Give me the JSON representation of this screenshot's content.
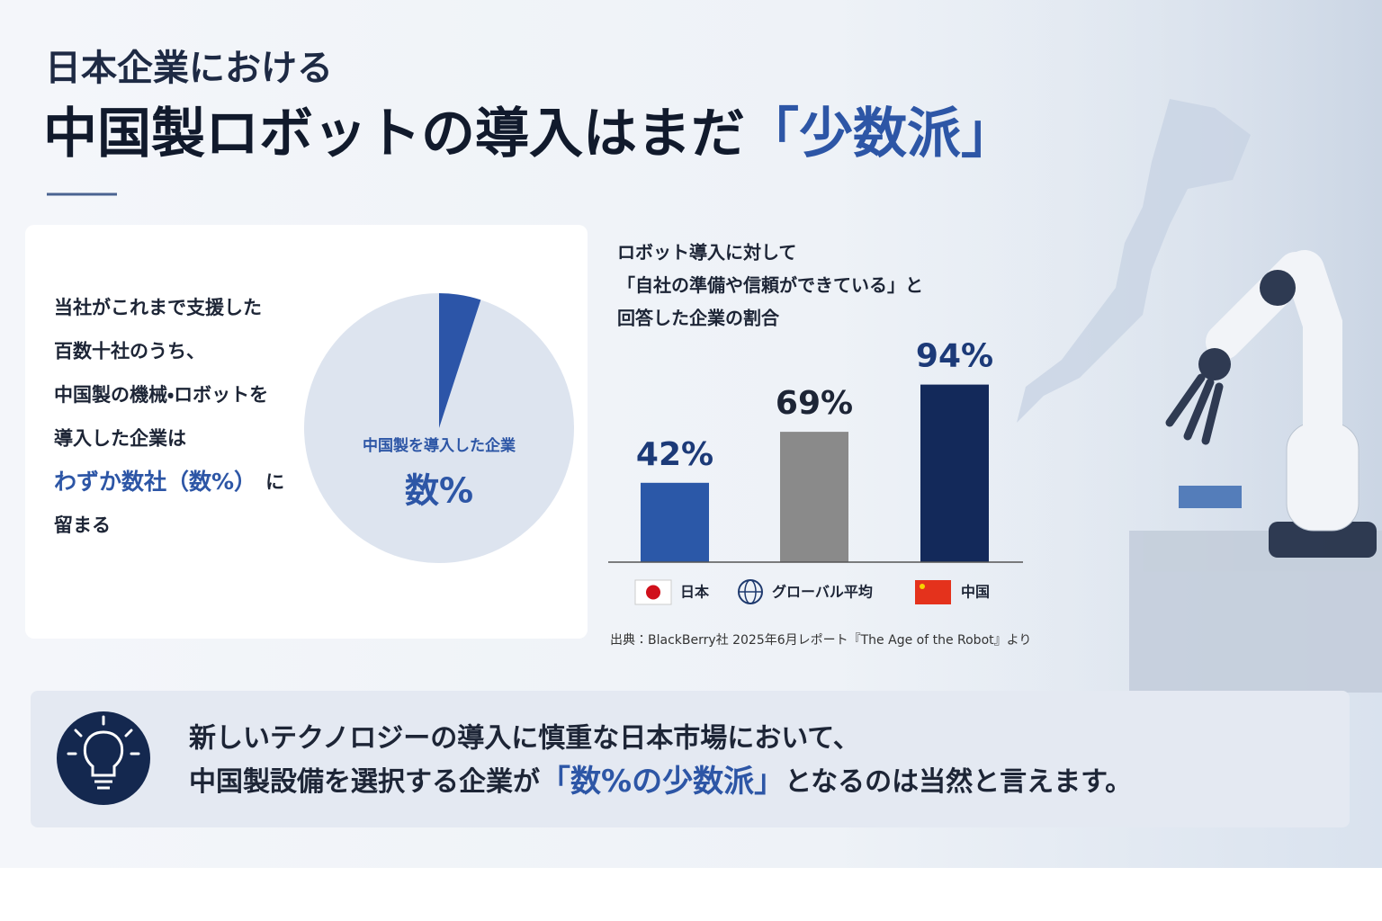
{
  "header": {
    "kicker": "日本企業における",
    "title": "中国製ロボットの導入はまだ",
    "title_highlight": "「少数派」"
  },
  "left_panel": {
    "lines": [
      "当社がこれまで支援した",
      "百数十社のうち、",
      "中国製の機械・ロボットを",
      "導入した企業は"
    ],
    "highlight": "わずか数社（数%）",
    "highlight_suffix": "に",
    "last_line": "留まる"
  },
  "chart_data": [
    {
      "type": "pie",
      "categories": [
        "中国製を導入した企業",
        null
      ],
      "values": [
        5,
        95
      ],
      "value_labels": [
        "数%",
        null
      ],
      "colors": [
        "#2c55a8",
        "#dde4ef"
      ]
    },
    {
      "type": "bar",
      "title": [
        "ロボット導入に対して",
        "「自社の準備や信頼ができている」と",
        "回答した企業の割合"
      ],
      "categories": [
        "日本",
        "グローバル平均",
        "中国"
      ],
      "values": [
        42,
        69,
        94
      ],
      "value_labels": [
        "42%",
        "69%",
        "94%"
      ],
      "colors": [
        "#2b58a8",
        "#8a8a8a",
        "#13295a"
      ],
      "ylim": [
        0,
        100
      ],
      "source": "出典：BlackBerry社 2025年6月レポート『The Age of the Robot』より"
    }
  ],
  "footer": {
    "line1": "新しいテクノロジーの導入に慎重な日本市場において、",
    "line2_before": "中国製設備を選択する企業が",
    "line2_highlight": "「数%の少数派」",
    "line2_after": "となるのは当然と言えます。"
  }
}
